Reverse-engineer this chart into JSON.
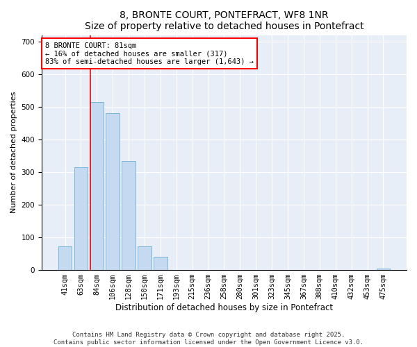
{
  "title": "8, BRONTE COURT, PONTEFRACT, WF8 1NR",
  "subtitle": "Size of property relative to detached houses in Pontefract",
  "xlabel": "Distribution of detached houses by size in Pontefract",
  "ylabel": "Number of detached properties",
  "categories": [
    "41sqm",
    "63sqm",
    "84sqm",
    "106sqm",
    "128sqm",
    "150sqm",
    "171sqm",
    "193sqm",
    "215sqm",
    "236sqm",
    "258sqm",
    "280sqm",
    "301sqm",
    "323sqm",
    "345sqm",
    "367sqm",
    "388sqm",
    "410sqm",
    "432sqm",
    "453sqm",
    "475sqm"
  ],
  "values": [
    72,
    315,
    515,
    480,
    335,
    72,
    40,
    0,
    0,
    0,
    0,
    0,
    0,
    0,
    0,
    0,
    0,
    0,
    0,
    0,
    5
  ],
  "bar_color": "#c5d9f1",
  "bar_edge_color": "#6baed6",
  "vline_color": "red",
  "vline_x_index": 2,
  "annotation_text": "8 BRONTE COURT: 81sqm\n← 16% of detached houses are smaller (317)\n83% of semi-detached houses are larger (1,643) →",
  "annotation_box_color": "white",
  "annotation_box_edge_color": "red",
  "annotation_fontsize": 7.5,
  "title_fontsize": 10,
  "ylabel_fontsize": 8,
  "xlabel_fontsize": 8.5,
  "tick_fontsize": 7.5,
  "ylim": [
    0,
    720
  ],
  "background_color": "#e8eef8",
  "grid_color": "#ffffff",
  "footer_text": "Contains HM Land Registry data © Crown copyright and database right 2025.\nContains public sector information licensed under the Open Government Licence v3.0.",
  "footer_fontsize": 6.5
}
